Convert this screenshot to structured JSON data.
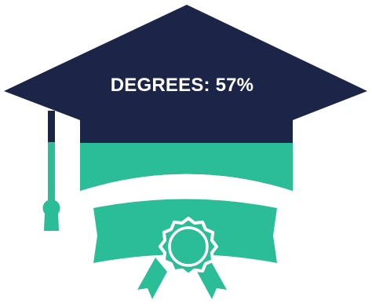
{
  "infographic": {
    "label": "DEGREES: 57%",
    "value_percent": 57,
    "icon": "graduation-cap-diploma-icon"
  },
  "colors": {
    "navy": "#1c2548",
    "teal": "#2bbd98",
    "white": "#ffffff"
  }
}
